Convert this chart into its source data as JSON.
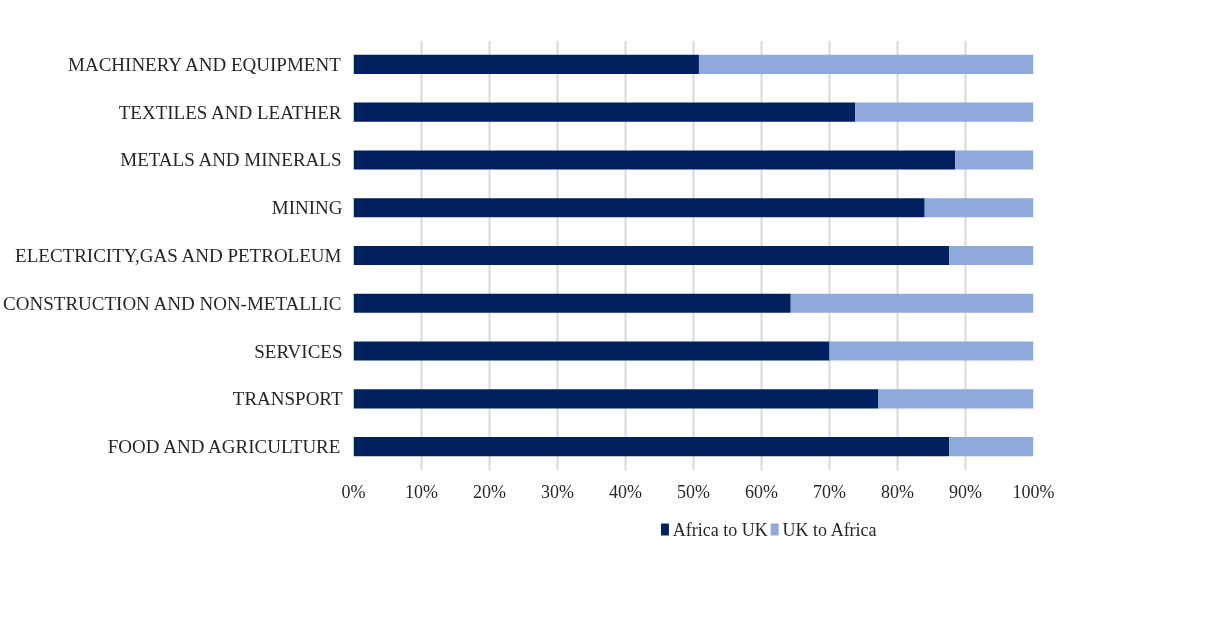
{
  "chart_data": {
    "type": "bar",
    "orientation": "horizontal",
    "stacked": true,
    "categories": [
      "MACHINERY AND EQUIPMENT",
      "TEXTILES AND LEATHER",
      "METALS AND MINERALS",
      "MINING",
      "ELECTRICITY,GAS AND PETROLEUM",
      "CONSTRUCTION AND NON-METALLIC",
      "SERVICES",
      "TRANSPORT",
      "FOOD AND AGRICULTURE"
    ],
    "series": [
      {
        "name": "Africa to UK",
        "color": "#002060",
        "values": [
          50.8,
          73.8,
          88.5,
          84.0,
          87.6,
          64.3,
          70.0,
          77.2,
          87.6
        ]
      },
      {
        "name": "UK to Africa",
        "color": "#8eaadb",
        "values": [
          49.2,
          26.2,
          11.5,
          16.0,
          12.4,
          35.7,
          30.0,
          22.8,
          12.4
        ]
      }
    ],
    "xlim": [
      0,
      100
    ],
    "xticks": [
      {
        "value": 0,
        "label": "0%"
      },
      {
        "value": 10,
        "label": "10%"
      },
      {
        "value": 20,
        "label": "20%"
      },
      {
        "value": 30,
        "label": "30%"
      },
      {
        "value": 40,
        "label": "40%"
      },
      {
        "value": 50,
        "label": "50%"
      },
      {
        "value": 60,
        "label": "60%"
      },
      {
        "value": 70,
        "label": "70%"
      },
      {
        "value": 80,
        "label": "80%"
      },
      {
        "value": 90,
        "label": "90%"
      },
      {
        "value": 100,
        "label": "100%"
      }
    ],
    "grid": "x",
    "legend": "bottom"
  }
}
